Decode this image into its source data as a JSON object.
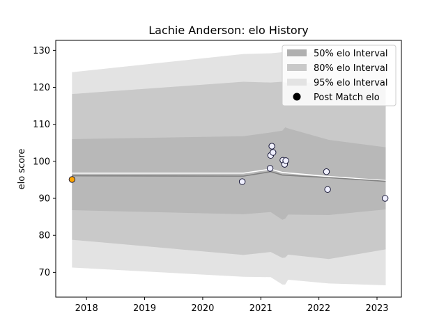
{
  "chart_data": {
    "type": "area",
    "title": "Lachie Anderson: elo History",
    "xlabel": "",
    "ylabel": "elo score",
    "xlim": [
      2017.47,
      2023.42
    ],
    "ylim": [
      63.3,
      132.7
    ],
    "x_ticks": [
      2018,
      2019,
      2020,
      2021,
      2022,
      2023
    ],
    "x_tick_labels": [
      "2018",
      "2019",
      "2020",
      "2021",
      "2022",
      "2023"
    ],
    "y_ticks": [
      70,
      80,
      90,
      100,
      110,
      120,
      130
    ],
    "y_tick_labels": [
      "70",
      "80",
      "90",
      "100",
      "110",
      "120",
      "130"
    ],
    "grid": false,
    "legend_position": "top-right",
    "legend": [
      {
        "label": "50% elo Interval",
        "kind": "band",
        "color": "#b0b0b0"
      },
      {
        "label": "80% elo Interval",
        "kind": "band",
        "color": "#c9c9c9"
      },
      {
        "label": "95% elo Interval",
        "kind": "band",
        "color": "#e3e3e3"
      },
      {
        "label": "Post Match elo",
        "kind": "marker",
        "color": "#000000"
      }
    ],
    "bands": [
      {
        "name": "95% elo Interval",
        "color": "#e3e3e3",
        "x": [
          2017.75,
          2020.7,
          2021.17,
          2021.37,
          2021.42,
          2021.47,
          2022.17,
          2023.15
        ],
        "upper": [
          124.1,
          129.0,
          129.2,
          129.5,
          129.4,
          129.3,
          129.5,
          129.5
        ],
        "lower": [
          71.3,
          68.8,
          68.7,
          66.7,
          66.7,
          68.0,
          67.0,
          66.5
        ]
      },
      {
        "name": "80% elo Interval",
        "color": "#c9c9c9",
        "x": [
          2017.75,
          2020.7,
          2021.17,
          2021.37,
          2021.42,
          2021.47,
          2022.17,
          2023.15
        ],
        "upper": [
          118.2,
          121.5,
          121.3,
          121.5,
          121.3,
          121.3,
          121.3,
          121.3
        ],
        "lower": [
          78.8,
          74.7,
          75.5,
          73.9,
          74.0,
          74.8,
          73.6,
          76.2
        ]
      },
      {
        "name": "50% elo Interval",
        "color": "#b8b8b8",
        "x": [
          2017.75,
          2020.7,
          2021.17,
          2021.37,
          2021.42,
          2021.47,
          2022.17,
          2023.15
        ],
        "upper": [
          106.0,
          106.8,
          107.8,
          108.3,
          109.2,
          108.9,
          105.8,
          103.8
        ],
        "lower": [
          86.8,
          85.7,
          86.3,
          84.2,
          84.5,
          85.6,
          85.5,
          87.0
        ]
      }
    ],
    "lines": [
      {
        "name": "mean elo",
        "color": "#ffffff",
        "x": [
          2017.75,
          2020.7,
          2021.17,
          2021.37,
          2022.17,
          2023.15
        ],
        "y": [
          96.8,
          96.8,
          97.9,
          97.0,
          95.9,
          94.8
        ]
      },
      {
        "name": "median elo",
        "color": "#808080",
        "x": [
          2017.75,
          2020.7,
          2021.17,
          2021.37,
          2022.17,
          2023.15
        ],
        "y": [
          96.1,
          96.0,
          97.2,
          96.3,
          95.6,
          94.6
        ]
      }
    ],
    "points": [
      {
        "x": 2017.75,
        "y": 95.1,
        "color": "#ffa500"
      },
      {
        "x": 2020.68,
        "y": 94.5,
        "color": "#f0f0ff"
      },
      {
        "x": 2021.16,
        "y": 98.1,
        "color": "#f0f0ff"
      },
      {
        "x": 2021.17,
        "y": 101.6,
        "color": "#f0f0ff"
      },
      {
        "x": 2021.19,
        "y": 104.1,
        "color": "#f0f0ff"
      },
      {
        "x": 2021.21,
        "y": 102.4,
        "color": "#f0f0ff"
      },
      {
        "x": 2021.38,
        "y": 100.3,
        "color": "#f0f0ff"
      },
      {
        "x": 2021.41,
        "y": 99.2,
        "color": "#f0f0ff"
      },
      {
        "x": 2021.43,
        "y": 100.2,
        "color": "#f0f0ff"
      },
      {
        "x": 2022.13,
        "y": 97.2,
        "color": "#f0f0ff"
      },
      {
        "x": 2022.15,
        "y": 92.4,
        "color": "#f0f0ff"
      },
      {
        "x": 2023.14,
        "y": 90.0,
        "color": "#f0f0ff"
      }
    ],
    "point_edge_color": "#1a1a3a"
  }
}
